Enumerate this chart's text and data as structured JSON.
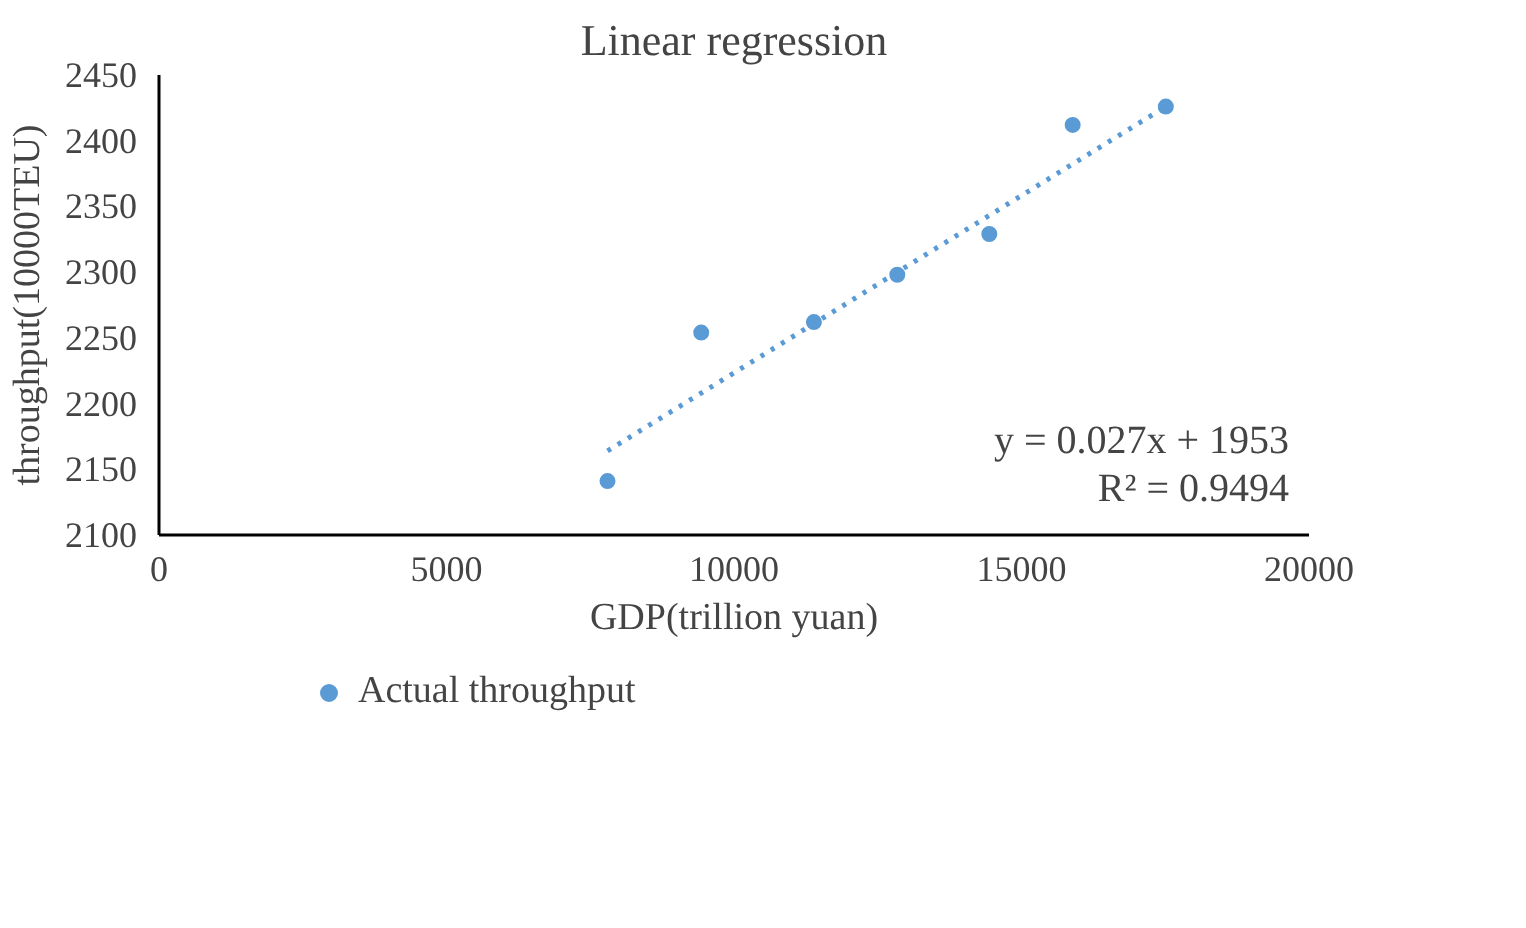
{
  "chart_data": {
    "type": "scatter",
    "title": "Linear regression",
    "xlabel": "GDP(trillion yuan)",
    "ylabel": "throughput(10000TEU)",
    "xlim": [
      0,
      20000
    ],
    "xticks": [
      0,
      5000,
      10000,
      15000,
      20000
    ],
    "ylim": [
      2100,
      2450
    ],
    "yticks": [
      2100,
      2150,
      2200,
      2250,
      2300,
      2350,
      2400,
      2450
    ],
    "grid": false,
    "legend": "bottom",
    "series": [
      {
        "name": "Actual throughput",
        "marker": "circle",
        "color": "#5b9bd5",
        "x": [
          7800,
          9430,
          11390,
          12840,
          14440,
          15890,
          17510
        ],
        "values": [
          2141,
          2254,
          2262,
          2298,
          2329,
          2412,
          2426
        ]
      },
      {
        "type": "line",
        "line_style": "dotted",
        "color": "#5b9bd5",
        "x": [
          7800,
          17510
        ],
        "values": [
          2164,
          2426
        ]
      }
    ],
    "annotations": [
      "y = 0.027x + 1953\nR² = 0.9494"
    ]
  }
}
